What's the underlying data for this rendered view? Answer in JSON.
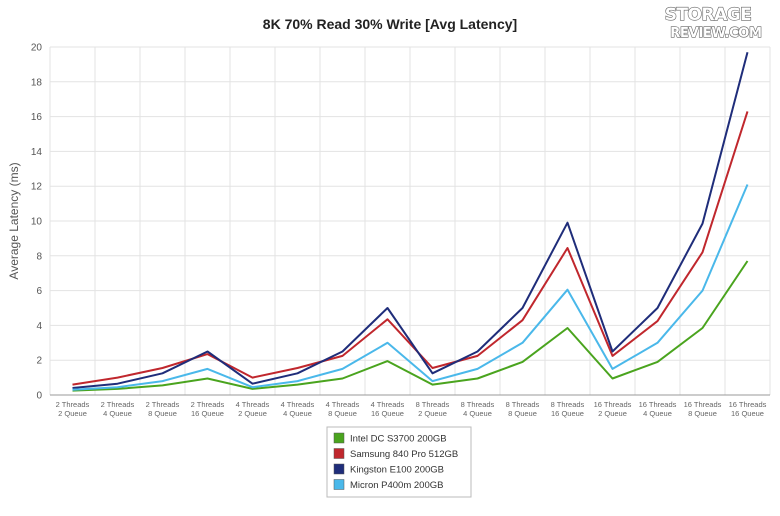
{
  "logo": {
    "line1": "STORAGE",
    "line2": "REVIEW.COM"
  },
  "chart_data": {
    "type": "line",
    "title": "8K 70% Read 30% Write [Avg Latency]",
    "ylabel": "Average Latency (ms)",
    "xlabel": "",
    "ylim": [
      0,
      20
    ],
    "yticks": [
      0,
      2,
      4,
      6,
      8,
      10,
      12,
      14,
      16,
      18,
      20
    ],
    "grid": true,
    "legend_position": "bottom-center",
    "categories": [
      {
        "line1": "2 Threads",
        "line2": "2 Queue"
      },
      {
        "line1": "2 Threads",
        "line2": "4 Queue"
      },
      {
        "line1": "2 Threads",
        "line2": "8 Queue"
      },
      {
        "line1": "2 Threads",
        "line2": "16 Queue"
      },
      {
        "line1": "4 Threads",
        "line2": "2 Queue"
      },
      {
        "line1": "4 Threads",
        "line2": "4 Queue"
      },
      {
        "line1": "4 Threads",
        "line2": "8 Queue"
      },
      {
        "line1": "4 Threads",
        "line2": "16 Queue"
      },
      {
        "line1": "8 Threads",
        "line2": "2 Queue"
      },
      {
        "line1": "8 Threads",
        "line2": "4 Queue"
      },
      {
        "line1": "8 Threads",
        "line2": "8 Queue"
      },
      {
        "line1": "8 Threads",
        "line2": "16 Queue"
      },
      {
        "line1": "16 Threads",
        "line2": "2 Queue"
      },
      {
        "line1": "16 Threads",
        "line2": "4 Queue"
      },
      {
        "line1": "16 Threads",
        "line2": "8 Queue"
      },
      {
        "line1": "16 Threads",
        "line2": "16 Queue"
      }
    ],
    "series": [
      {
        "name": "Intel DC S3700 200GB",
        "color": "#4aa41e",
        "values": [
          0.25,
          0.35,
          0.55,
          0.95,
          0.35,
          0.6,
          0.95,
          1.95,
          0.6,
          0.95,
          1.9,
          3.85,
          0.95,
          1.9,
          3.85,
          7.7
        ]
      },
      {
        "name": "Samsung 840 Pro 512GB",
        "color": "#c0272d",
        "values": [
          0.6,
          1.0,
          1.55,
          2.35,
          1.0,
          1.55,
          2.25,
          4.35,
          1.55,
          2.25,
          4.3,
          8.45,
          2.25,
          4.25,
          8.2,
          16.3
        ]
      },
      {
        "name": "Kingston E100 200GB",
        "color": "#1f2d7a",
        "values": [
          0.4,
          0.65,
          1.25,
          2.5,
          0.65,
          1.25,
          2.5,
          5.0,
          1.25,
          2.5,
          5.0,
          9.9,
          2.5,
          5.0,
          9.85,
          19.7
        ]
      },
      {
        "name": "Micron P400m 200GB",
        "color": "#4ab8ea",
        "values": [
          0.3,
          0.45,
          0.8,
          1.5,
          0.45,
          0.8,
          1.5,
          3.0,
          0.8,
          1.5,
          3.0,
          6.05,
          1.5,
          3.0,
          6.0,
          12.1
        ]
      }
    ]
  }
}
